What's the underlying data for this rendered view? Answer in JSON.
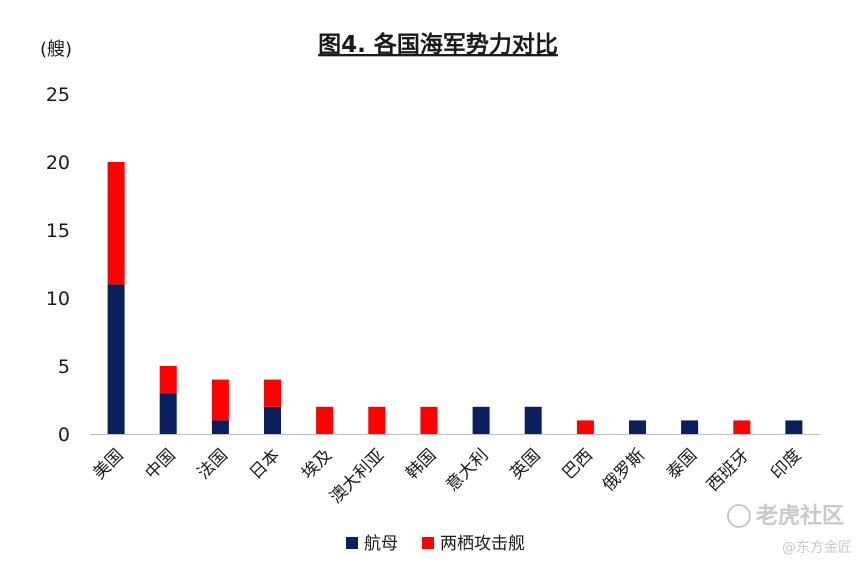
{
  "chart_data": {
    "type": "bar",
    "stacked": true,
    "title": "图4. 各国海军势力对比",
    "ylabel": "(艘)",
    "ylim": [
      0,
      25
    ],
    "yticks": [
      0,
      5,
      10,
      15,
      20,
      25
    ],
    "grid": false,
    "legend_position": "bottom",
    "categories": [
      "美国",
      "中国",
      "法国",
      "日本",
      "埃及",
      "澳大利亚",
      "韩国",
      "意大利",
      "英国",
      "巴西",
      "俄罗斯",
      "泰国",
      "西班牙",
      "印度"
    ],
    "series": [
      {
        "name": "航母",
        "color": "#0a1f5c",
        "values": [
          11,
          3,
          1,
          2,
          0,
          0,
          0,
          2,
          2,
          0,
          1,
          1,
          0,
          1
        ]
      },
      {
        "name": "两栖攻击舰",
        "color": "#ff0000",
        "values": [
          9,
          2,
          3,
          2,
          2,
          2,
          2,
          0,
          0,
          1,
          0,
          0,
          1,
          0
        ]
      }
    ]
  },
  "watermark": {
    "brand": "老虎社区",
    "source": "@东方金匠"
  }
}
